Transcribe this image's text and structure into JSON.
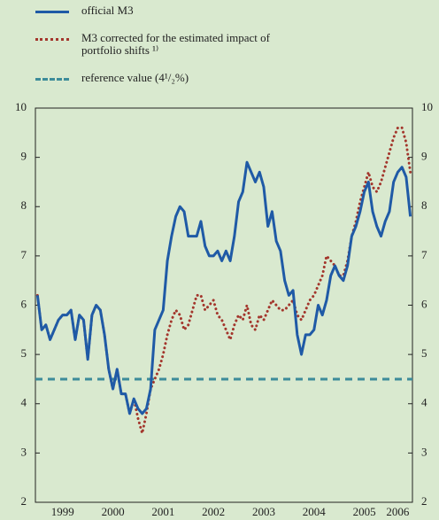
{
  "chart_data": {
    "type": "line",
    "categories": [
      null,
      null,
      null,
      null,
      null,
      null,
      "1999",
      null,
      null,
      null,
      null,
      null,
      null,
      null,
      null,
      null,
      null,
      null,
      "2000",
      null,
      null,
      null,
      null,
      null,
      null,
      null,
      null,
      null,
      null,
      null,
      "2001",
      null,
      null,
      null,
      null,
      null,
      null,
      null,
      null,
      null,
      null,
      null,
      "2002",
      null,
      null,
      null,
      null,
      null,
      null,
      null,
      null,
      null,
      null,
      null,
      "2003",
      null,
      null,
      null,
      null,
      null,
      null,
      null,
      null,
      null,
      null,
      null,
      "2004",
      null,
      null,
      null,
      null,
      null,
      null,
      null,
      null,
      null,
      null,
      null,
      "2005",
      null,
      null,
      null,
      null,
      null,
      null,
      null,
      "2006",
      null,
      null,
      null
    ],
    "series": [
      {
        "name": "official M3",
        "color": "#1f5aa6",
        "style": "solid",
        "values": [
          6.2,
          5.5,
          5.6,
          5.3,
          5.5,
          5.7,
          5.8,
          5.8,
          5.9,
          5.3,
          5.8,
          5.7,
          4.9,
          5.8,
          6.0,
          5.9,
          5.4,
          4.7,
          4.3,
          4.7,
          4.2,
          4.2,
          3.8,
          4.1,
          3.9,
          3.8,
          3.9,
          4.3,
          5.5,
          5.7,
          5.9,
          6.9,
          7.4,
          7.8,
          8.0,
          7.9,
          7.4,
          7.4,
          7.4,
          7.7,
          7.2,
          7.0,
          7.0,
          7.1,
          6.9,
          7.1,
          6.9,
          7.4,
          8.1,
          8.3,
          8.9,
          8.7,
          8.5,
          8.7,
          8.4,
          7.6,
          7.9,
          7.3,
          7.1,
          6.5,
          6.2,
          6.3,
          5.4,
          5.0,
          5.4,
          5.4,
          5.5,
          6.0,
          5.8,
          6.1,
          6.6,
          6.8,
          6.6,
          6.5,
          6.8,
          7.4,
          7.6,
          7.9,
          8.3,
          8.5,
          7.9,
          7.6,
          7.4,
          7.7,
          7.9,
          8.5,
          8.7,
          8.8,
          8.6,
          7.8
        ]
      },
      {
        "name": "M3 corrected for the estimated impact of portfolio shifts ¹⁾",
        "color": "#a3362c",
        "style": "dotted",
        "values": [
          6.2,
          5.5,
          5.6,
          5.3,
          5.5,
          5.7,
          5.8,
          5.8,
          5.9,
          5.3,
          5.8,
          5.7,
          4.9,
          5.8,
          6.0,
          5.9,
          5.4,
          4.7,
          4.3,
          4.7,
          4.2,
          4.2,
          3.8,
          4.1,
          3.7,
          3.4,
          3.8,
          4.3,
          4.5,
          4.7,
          5.0,
          5.4,
          5.7,
          5.9,
          5.8,
          5.5,
          5.6,
          5.9,
          6.2,
          6.2,
          5.9,
          6.0,
          6.1,
          5.8,
          5.7,
          5.5,
          5.3,
          5.6,
          5.8,
          5.7,
          6.0,
          5.6,
          5.5,
          5.8,
          5.7,
          5.9,
          6.1,
          6.0,
          5.9,
          5.9,
          6.0,
          6.1,
          5.8,
          5.7,
          5.9,
          6.1,
          6.2,
          6.4,
          6.6,
          7.0,
          6.9,
          6.8,
          6.6,
          6.6,
          6.9,
          7.4,
          7.7,
          8.1,
          8.4,
          8.7,
          8.4,
          8.3,
          8.5,
          8.8,
          9.1,
          9.4,
          9.6,
          9.6,
          9.3,
          8.7
        ]
      }
    ],
    "reference_line": {
      "name": "reference value (4¹/₂%)",
      "value": 4.5,
      "color": "#3d8c9a"
    },
    "ylim": [
      2,
      10
    ],
    "yticks": [
      2,
      3,
      4,
      5,
      6,
      7,
      8,
      9,
      10
    ],
    "right_axis_labels": true,
    "grid": false
  }
}
